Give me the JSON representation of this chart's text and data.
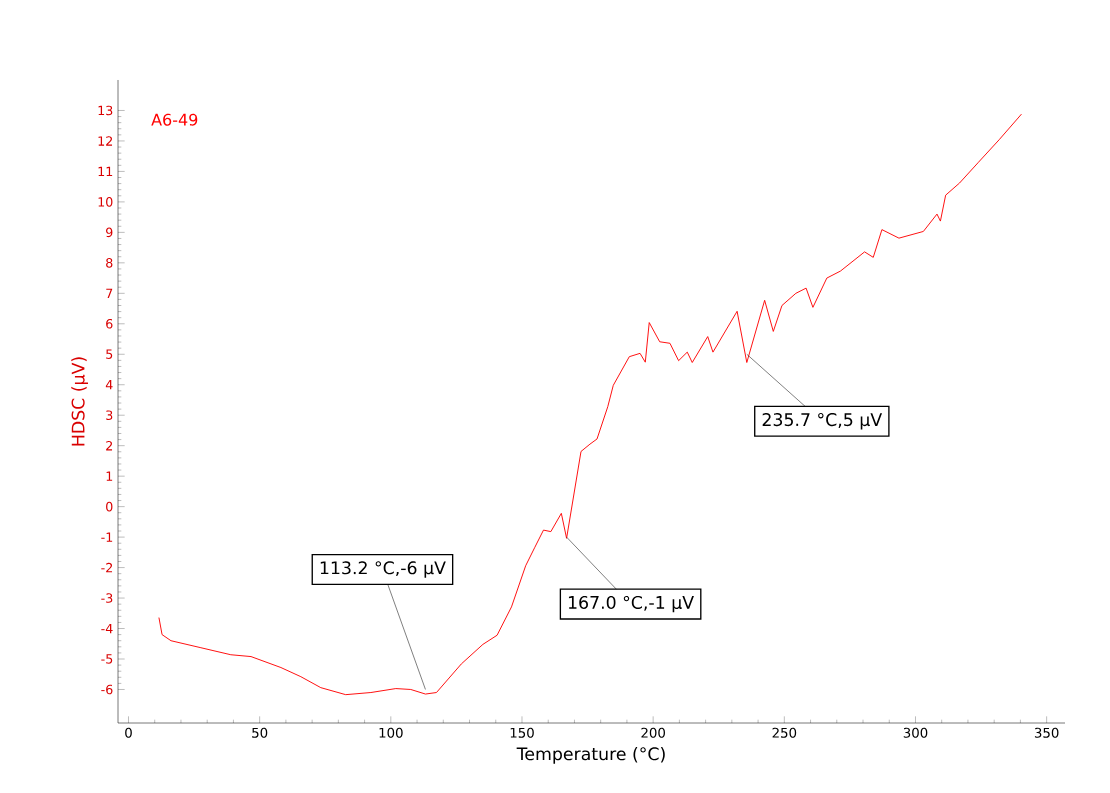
{
  "chart_data": {
    "type": "line",
    "xlabel": "Temperature (°C)",
    "ylabel": "HDSC (µV)",
    "xlim": [
      -4,
      357
    ],
    "ylim": [
      -7.1,
      14
    ],
    "xticks": [
      0,
      50,
      100,
      150,
      200,
      250,
      300,
      350
    ],
    "yticks": [
      -6,
      -5,
      -4,
      -3,
      -2,
      -1,
      0,
      1,
      2,
      3,
      4,
      5,
      6,
      7,
      8,
      9,
      10,
      11,
      12,
      13
    ],
    "series": [
      {
        "name": "A6-49",
        "color": "#ff0000",
        "x": [
          11.6,
          12.8,
          16.2,
          27.6,
          39.0,
          46.7,
          58.1,
          65.7,
          73.3,
          82.8,
          92.4,
          101.9,
          107.6,
          113.2,
          117.4,
          126.9,
          135.1,
          140.5,
          146.0,
          151.4,
          154.8,
          158.2,
          161.0,
          165.0,
          167.0,
          172.5,
          175.9,
          178.6,
          182.7,
          184.8,
          190.9,
          195.0,
          197.0,
          198.5,
          202.5,
          206.4,
          209.7,
          213.0,
          214.9,
          220.8,
          222.8,
          232.0,
          235.7,
          242.5,
          245.8,
          249.1,
          254.4,
          258.3,
          260.9,
          266.2,
          271.4,
          280.6,
          283.9,
          287.2,
          293.7,
          303.0,
          308.2,
          309.5,
          311.5,
          316.8,
          324.0,
          331.9,
          340.4
        ],
        "values": [
          -3.64,
          -4.2,
          -4.4,
          -4.63,
          -4.86,
          -4.92,
          -5.28,
          -5.58,
          -5.94,
          -6.17,
          -6.1,
          -5.97,
          -6.0,
          -6.15,
          -6.1,
          -5.16,
          -4.52,
          -4.22,
          -3.29,
          -1.94,
          -1.35,
          -0.77,
          -0.82,
          -0.22,
          -1.04,
          1.81,
          2.05,
          2.22,
          3.28,
          3.98,
          4.92,
          5.03,
          4.74,
          6.04,
          5.41,
          5.36,
          4.79,
          5.07,
          4.73,
          5.58,
          5.07,
          6.41,
          4.73,
          6.77,
          5.75,
          6.6,
          7.0,
          7.17,
          6.54,
          7.5,
          7.73,
          8.36,
          8.18,
          9.09,
          8.81,
          9.03,
          9.6,
          9.37,
          10.22,
          10.62,
          11.3,
          12.04,
          12.88
        ]
      }
    ],
    "annotations": [
      {
        "text": "113.2 °C,-6 µV",
        "x": 113.2,
        "y": -6
      },
      {
        "text": "167.0 °C,-1 µV",
        "x": 167.0,
        "y": -1
      },
      {
        "text": "235.7 °C,5 µV",
        "x": 235.7,
        "y": 5
      }
    ]
  }
}
